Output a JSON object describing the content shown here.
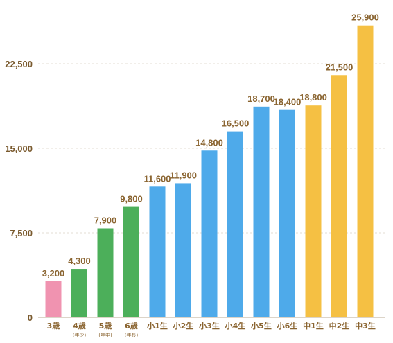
{
  "chart_data": {
    "type": "bar",
    "categories": [
      "3歳",
      "4歳",
      "5歳",
      "6歳",
      "小1生",
      "小2生",
      "小3生",
      "小4生",
      "小5生",
      "小6生",
      "中1生",
      "中2生",
      "中3生"
    ],
    "category_notes": [
      "",
      "(年少)",
      "(年中)",
      "(年長)",
      "",
      "",
      "",
      "",
      "",
      "",
      "",
      "",
      ""
    ],
    "values": [
      3200,
      4300,
      7900,
      9800,
      11600,
      11900,
      14800,
      16500,
      18700,
      18400,
      18800,
      21500,
      25900
    ],
    "value_labels": [
      "3,200",
      "4,300",
      "7,900",
      "9,800",
      "11,600",
      "11,900",
      "14,800",
      "16,500",
      "18,700",
      "18,400",
      "18,800",
      "21,500",
      "25,900"
    ],
    "bar_colors": [
      "#f093b0",
      "#4caf5a",
      "#4caf5a",
      "#4caf5a",
      "#4eaaea",
      "#4eaaea",
      "#4eaaea",
      "#4eaaea",
      "#4eaaea",
      "#4eaaea",
      "#f5c043",
      "#f5c043",
      "#f5c043"
    ],
    "yticks": [
      0,
      7500,
      15000,
      22500
    ],
    "ytick_labels": [
      "0",
      "7,500",
      "15,000",
      "22,500"
    ],
    "ylim": [
      0,
      27000
    ],
    "grid": "horizontal dashed",
    "title": "",
    "xlabel": "",
    "ylabel": ""
  }
}
